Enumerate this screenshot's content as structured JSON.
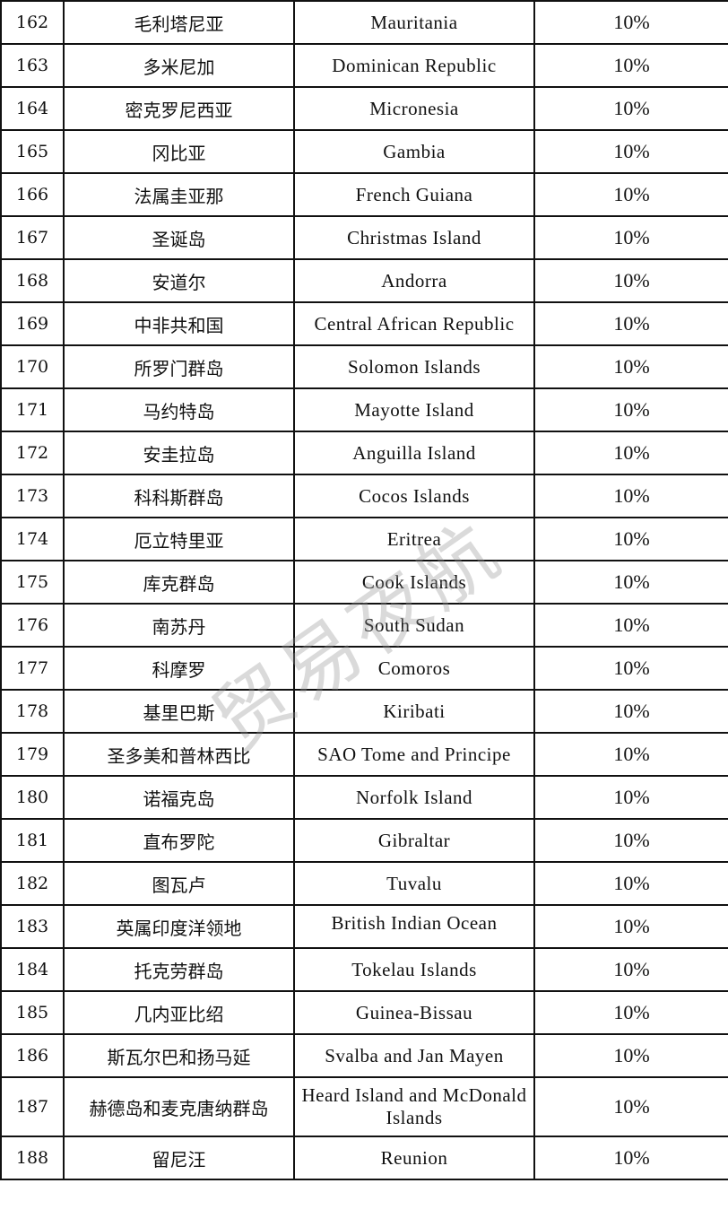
{
  "table": {
    "rows": [
      [
        "162",
        "毛利塔尼亚",
        "Mauritania",
        "10%"
      ],
      [
        "163",
        "多米尼加",
        "Dominican Republic",
        "10%"
      ],
      [
        "164",
        "密克罗尼西亚",
        "Micronesia",
        "10%"
      ],
      [
        "165",
        "冈比亚",
        "Gambia",
        "10%"
      ],
      [
        "166",
        "法属圭亚那",
        "French Guiana",
        "10%"
      ],
      [
        "167",
        "圣诞岛",
        "Christmas Island",
        "10%"
      ],
      [
        "168",
        "安道尔",
        "Andorra",
        "10%"
      ],
      [
        "169",
        "中非共和国",
        "Central African Republic",
        "10%"
      ],
      [
        "170",
        "所罗门群岛",
        "Solomon Islands",
        "10%"
      ],
      [
        "171",
        "马约特岛",
        "Mayotte Island",
        "10%"
      ],
      [
        "172",
        "安圭拉岛",
        "Anguilla Island",
        "10%"
      ],
      [
        "173",
        "科科斯群岛",
        "Cocos Islands",
        "10%"
      ],
      [
        "174",
        "厄立特里亚",
        "Eritrea",
        "10%"
      ],
      [
        "175",
        "库克群岛",
        "Cook Islands",
        "10%"
      ],
      [
        "176",
        "南苏丹",
        "South Sudan",
        "10%"
      ],
      [
        "177",
        "科摩罗",
        "Comoros",
        "10%"
      ],
      [
        "178",
        "基里巴斯",
        "Kiribati",
        "10%"
      ],
      [
        "179",
        "圣多美和普林西比",
        "SAO Tome and Principe",
        "10%"
      ],
      [
        "180",
        "诺福克岛",
        "Norfolk Island",
        "10%"
      ],
      [
        "181",
        "直布罗陀",
        "Gibraltar",
        "10%"
      ],
      [
        "182",
        "图瓦卢",
        "Tuvalu",
        "10%"
      ],
      [
        "183",
        "英属印度洋领地",
        "British Indian Ocean Territory",
        "10%"
      ],
      [
        "184",
        "托克劳群岛",
        "Tokelau Islands",
        "10%"
      ],
      [
        "185",
        "几内亚比绍",
        "Guinea-Bissau",
        "10%"
      ],
      [
        "186",
        "斯瓦尔巴和扬马延",
        "Svalba and Jan Mayen",
        "10%"
      ],
      [
        "187",
        "赫德岛和麦克唐纳群岛",
        "Heard Island and McDonald Islands",
        "10%"
      ],
      [
        "188",
        "留尼汪",
        "Reunion",
        "10%"
      ]
    ]
  },
  "watermark": "贸易夜航"
}
